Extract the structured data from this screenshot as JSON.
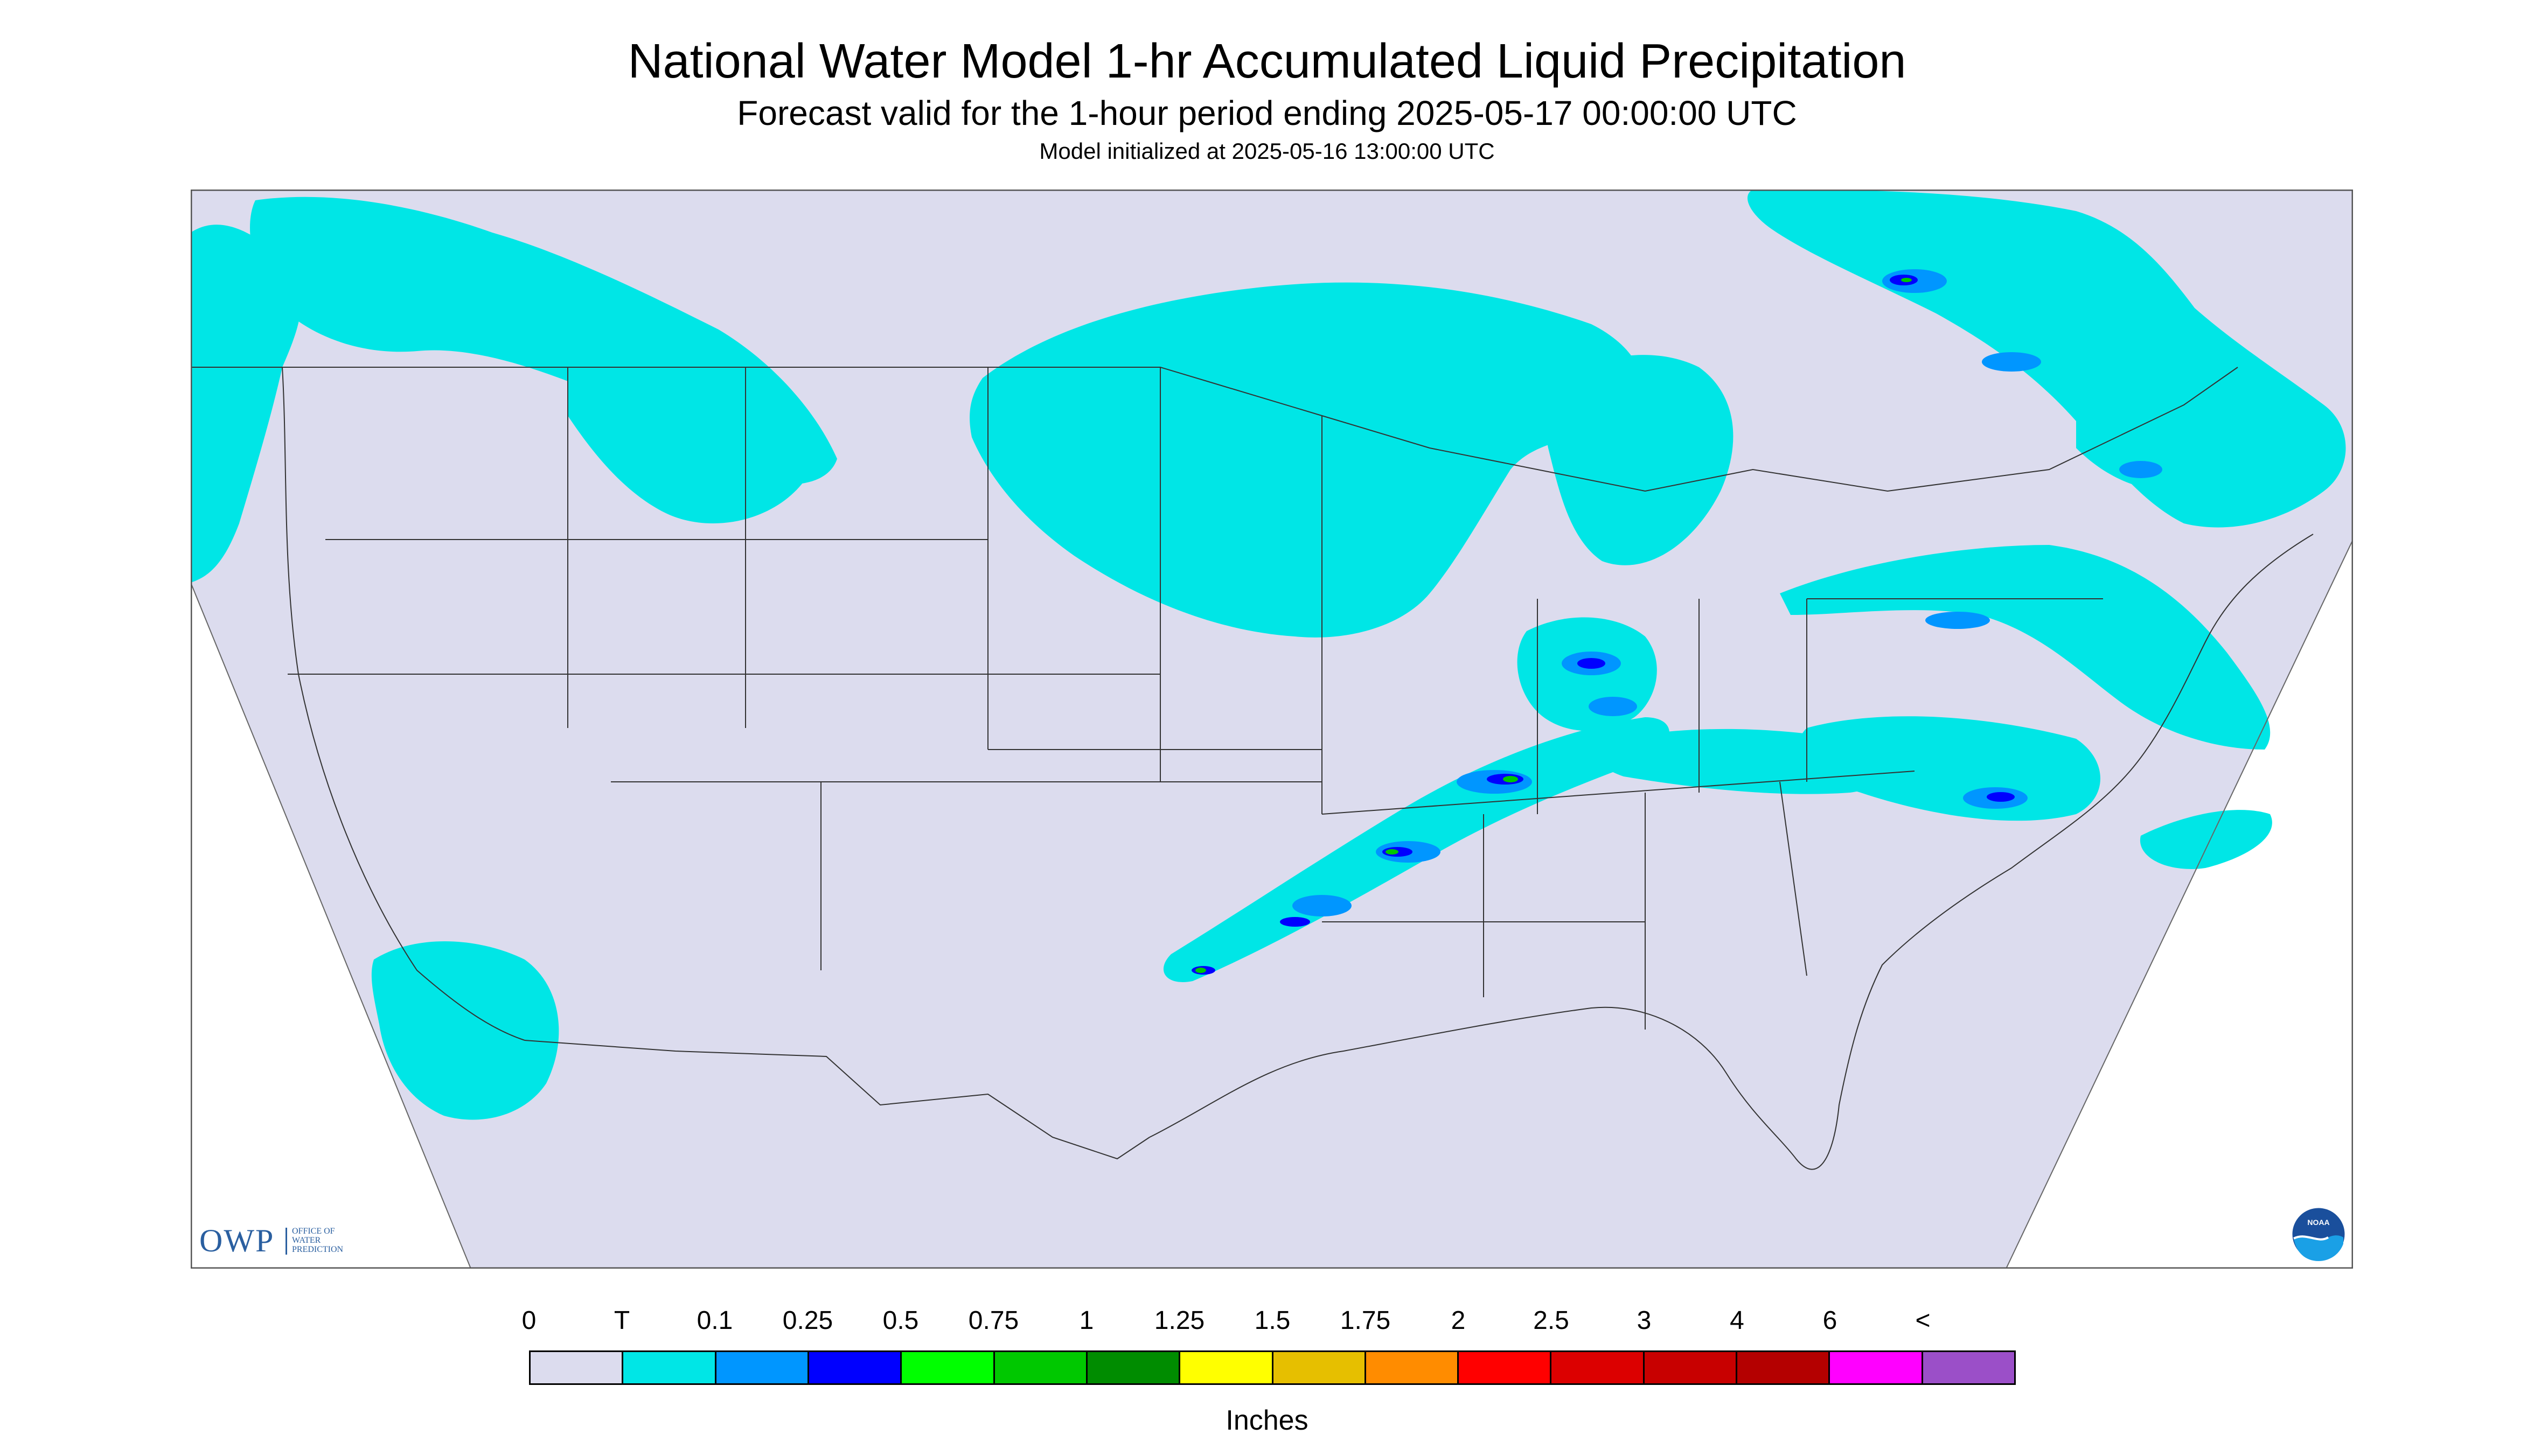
{
  "header": {
    "title": "National Water Model 1-hr Accumulated Liquid Precipitation",
    "subtitle": "Forecast valid for the 1-hour period ending 2025-05-17 00:00:00 UTC",
    "init": "Model initialized at 2025-05-16 13:00:00 UTC"
  },
  "logos": {
    "owp_text": "OWP",
    "owp_small": "OFFICE OF\nWATER\nPREDICTION",
    "noaa_text": "NOAA"
  },
  "colors": {
    "background_fill": "#dcdcee",
    "trace": "#00e6e6",
    "light_blue": "#0096ff",
    "blue": "#0000ff",
    "green_light": "#00ff00",
    "green": "#00c800",
    "green_dark": "#008c00",
    "outside": "#ffffff"
  },
  "legend": {
    "labels": [
      "0",
      "T",
      "0.1",
      "0.25",
      "0.5",
      "0.75",
      "1",
      "1.25",
      "1.5",
      "1.75",
      "2",
      "2.5",
      "3",
      "4",
      "6",
      "<"
    ],
    "colors": [
      "#dcdcee",
      "#00e6e6",
      "#0096ff",
      "#0000ff",
      "#00ff00",
      "#00c800",
      "#008c00",
      "#ffff00",
      "#e6bf00",
      "#ff8c00",
      "#ff0000",
      "#dc0000",
      "#c80000",
      "#b40000",
      "#ff00ff",
      "#9b4fc8"
    ],
    "units": "Inches"
  }
}
